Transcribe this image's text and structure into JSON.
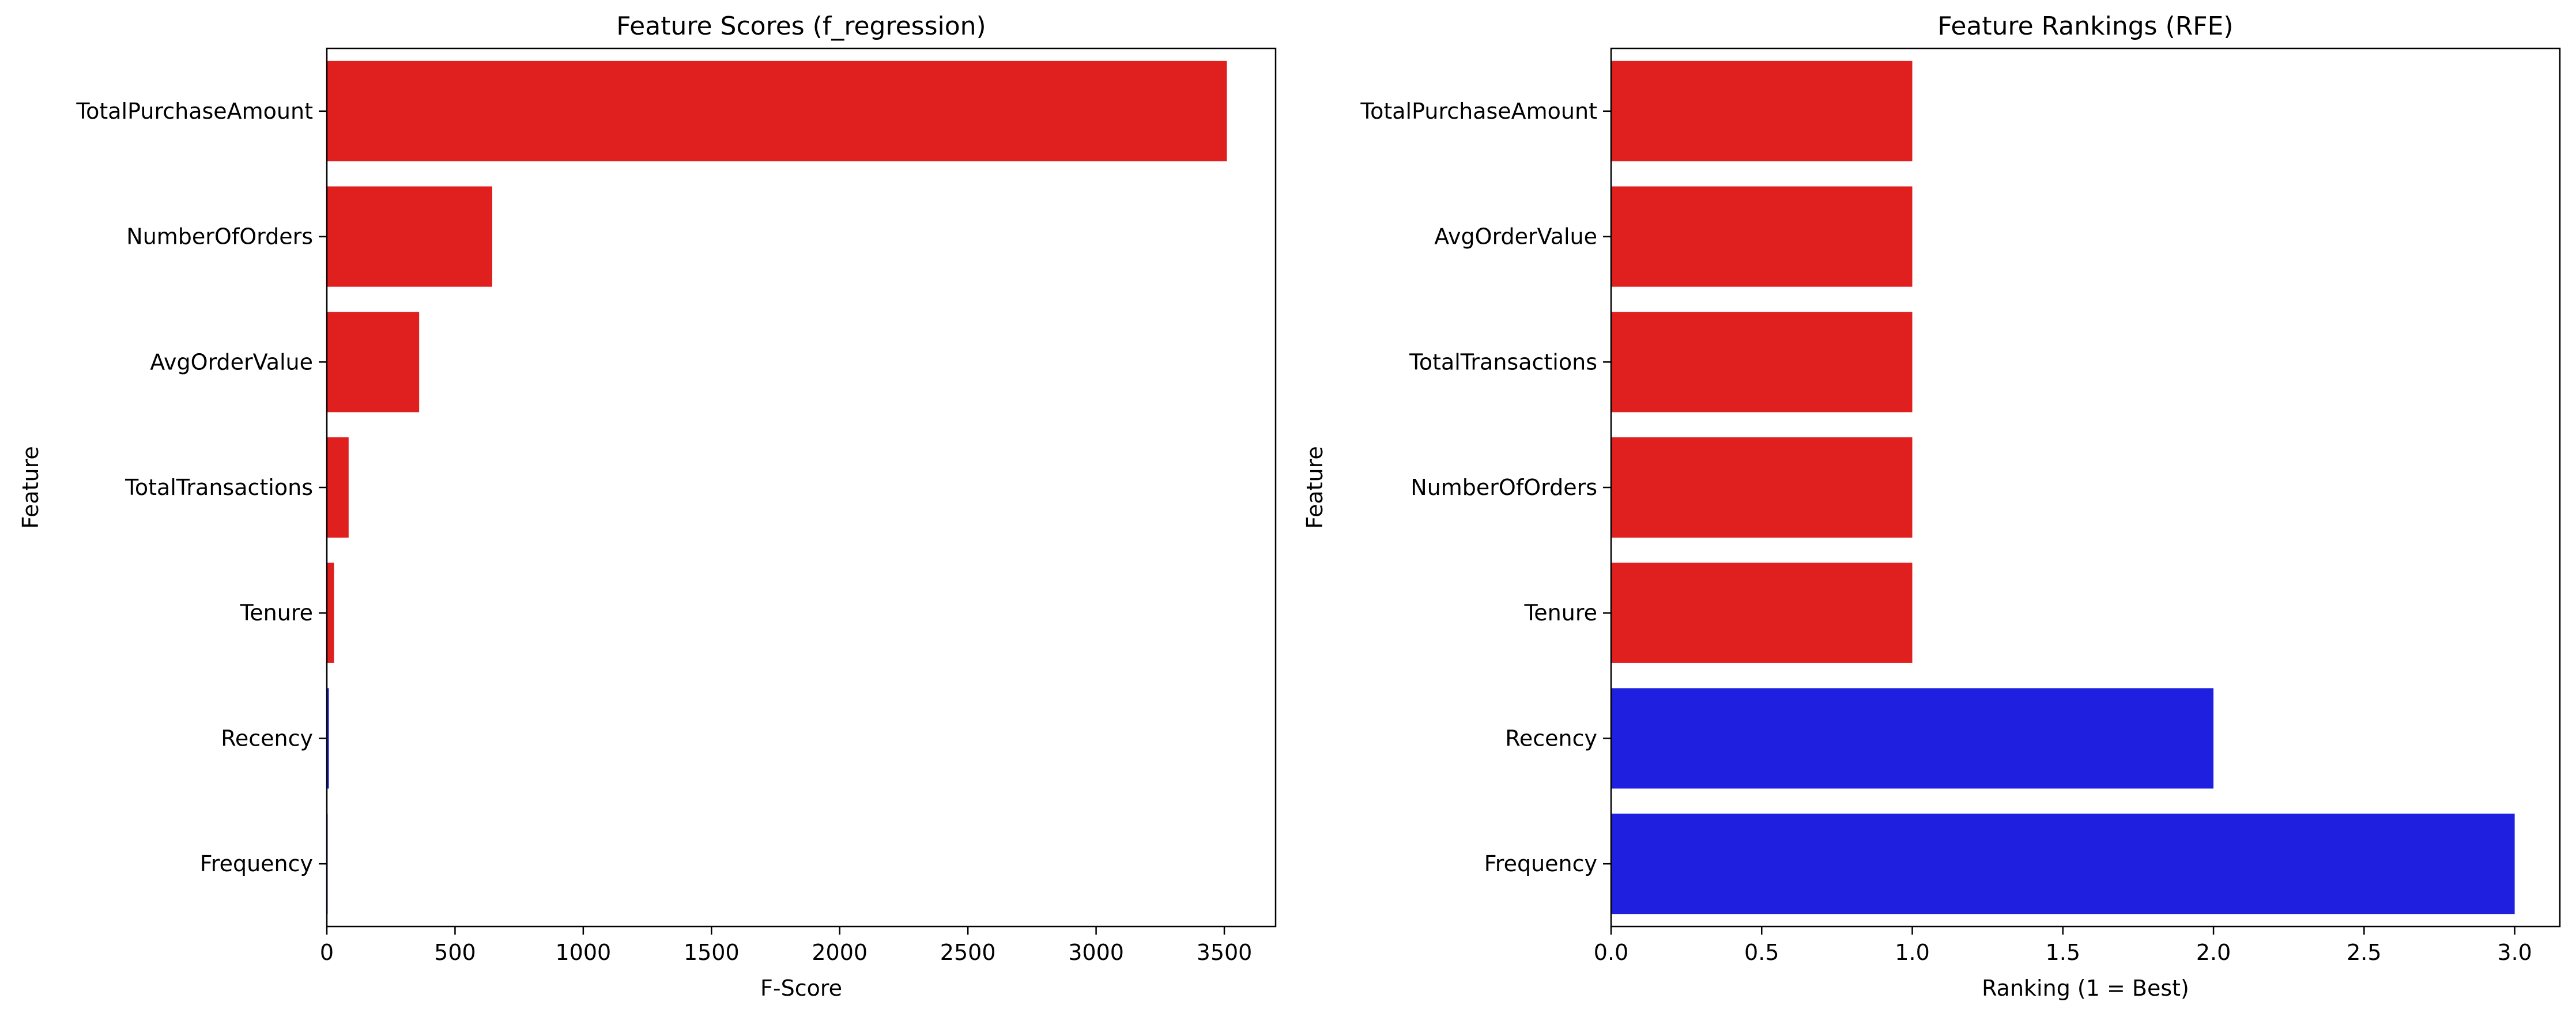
{
  "chart_data": [
    {
      "type": "bar",
      "orientation": "horizontal",
      "title": "Feature Scores (f_regression)",
      "xlabel": "F-Score",
      "ylabel": "Feature",
      "categories": [
        "TotalPurchaseAmount",
        "NumberOfOrders",
        "AvgOrderValue",
        "TotalTransactions",
        "Tenure",
        "Recency",
        "Frequency"
      ],
      "values": [
        3510,
        645,
        360,
        85,
        28,
        8,
        1
      ],
      "colors": [
        "#e01f1f",
        "#e01f1f",
        "#e01f1f",
        "#e01f1f",
        "#e01f1f",
        "#1f1fe0",
        "#1f1fe0"
      ],
      "xlim": [
        0,
        3700
      ],
      "xticks": [
        0,
        500,
        1000,
        1500,
        2000,
        2500,
        3000,
        3500
      ],
      "xtick_labels": [
        "0",
        "500",
        "1000",
        "1500",
        "2000",
        "2500",
        "3000",
        "3500"
      ],
      "grid": false
    },
    {
      "type": "bar",
      "orientation": "horizontal",
      "title": "Feature Rankings (RFE)",
      "xlabel": "Ranking (1 = Best)",
      "ylabel": "Feature",
      "categories": [
        "TotalPurchaseAmount",
        "AvgOrderValue",
        "TotalTransactions",
        "NumberOfOrders",
        "Tenure",
        "Recency",
        "Frequency"
      ],
      "values": [
        1,
        1,
        1,
        1,
        1,
        2,
        3
      ],
      "colors": [
        "#e01f1f",
        "#e01f1f",
        "#e01f1f",
        "#e01f1f",
        "#e01f1f",
        "#1f1fe0",
        "#1f1fe0"
      ],
      "xlim": [
        0,
        3.15
      ],
      "xticks": [
        0,
        0.5,
        1,
        1.5,
        2,
        2.5,
        3
      ],
      "xtick_labels": [
        "0.0",
        "0.5",
        "1.0",
        "1.5",
        "2.0",
        "2.5",
        "3.0"
      ],
      "grid": false
    }
  ]
}
